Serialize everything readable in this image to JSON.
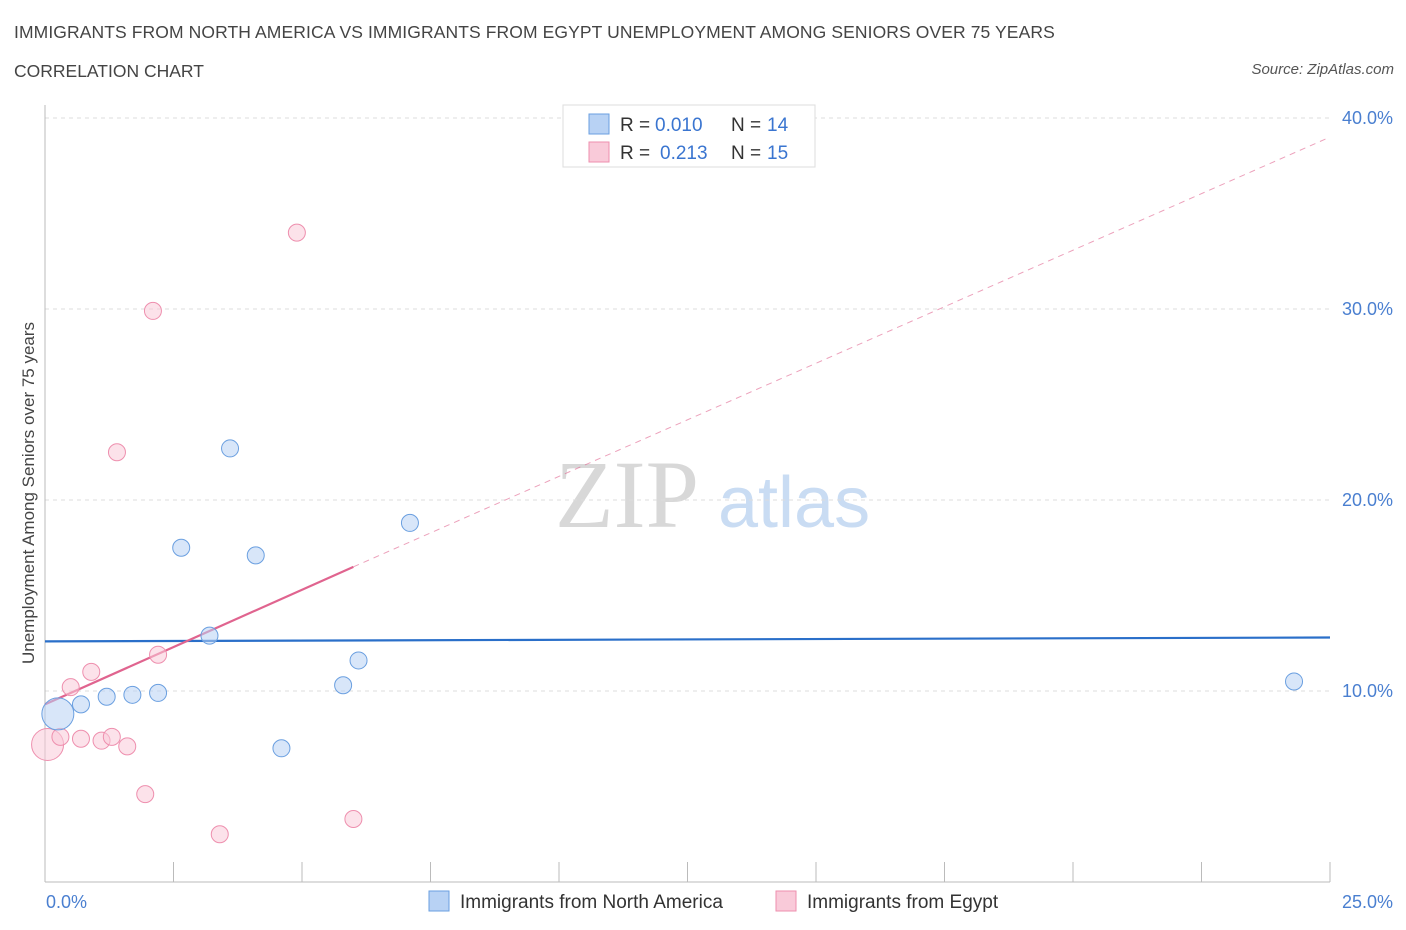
{
  "header": {
    "title": "IMMIGRANTS FROM NORTH AMERICA VS IMMIGRANTS FROM EGYPT UNEMPLOYMENT AMONG SENIORS OVER 75 YEARS",
    "subtitle": "CORRELATION CHART",
    "source": "Source: ZipAtlas.com"
  },
  "watermark": {
    "zip": "ZIP",
    "atlas": "atlas"
  },
  "legend": {
    "r_label": "R =",
    "n_label": "N =",
    "rows": [
      {
        "r": "0.010",
        "n": "14"
      },
      {
        "r": "0.213",
        "n": "15"
      }
    ]
  },
  "chart_data": {
    "type": "scatter",
    "title": "IMMIGRANTS FROM NORTH AMERICA VS IMMIGRANTS FROM EGYPT UNEMPLOYMENT AMONG SENIORS OVER 75 YEARS",
    "ylabel": "Unemployment Among Seniors over 75 years",
    "xlabel": "",
    "xlim": [
      0,
      25
    ],
    "ylim": [
      0,
      40
    ],
    "x_tick_labels": [
      "0.0%",
      "25.0%"
    ],
    "y_ticks": [
      10,
      20,
      30,
      40
    ],
    "y_tick_labels": [
      "10.0%",
      "20.0%",
      "30.0%",
      "40.0%"
    ],
    "grid": true,
    "colors": {
      "north_america": "#6a9fe0",
      "egypt": "#ee8fae",
      "na_line": "#2a6fc9",
      "eg_line": "#e0648f"
    },
    "series": [
      {
        "name": "Immigrants from North America",
        "points": [
          {
            "x": 0.25,
            "y": 8.8,
            "size": "large"
          },
          {
            "x": 0.7,
            "y": 9.3
          },
          {
            "x": 1.2,
            "y": 9.7
          },
          {
            "x": 1.7,
            "y": 9.8
          },
          {
            "x": 2.2,
            "y": 9.9
          },
          {
            "x": 2.65,
            "y": 17.5
          },
          {
            "x": 3.2,
            "y": 12.9
          },
          {
            "x": 3.6,
            "y": 22.7
          },
          {
            "x": 4.1,
            "y": 17.1
          },
          {
            "x": 4.6,
            "y": 7.0
          },
          {
            "x": 5.8,
            "y": 10.3
          },
          {
            "x": 6.1,
            "y": 11.6
          },
          {
            "x": 7.1,
            "y": 18.8
          },
          {
            "x": 24.3,
            "y": 10.5
          }
        ],
        "trend": {
          "x": [
            0,
            25
          ],
          "y": [
            12.6,
            12.8
          ]
        }
      },
      {
        "name": "Immigrants from Egypt",
        "points": [
          {
            "x": 0.05,
            "y": 7.2,
            "size": "large"
          },
          {
            "x": 0.3,
            "y": 7.6
          },
          {
            "x": 0.5,
            "y": 10.2
          },
          {
            "x": 0.7,
            "y": 7.5
          },
          {
            "x": 0.9,
            "y": 11.0
          },
          {
            "x": 1.1,
            "y": 7.4
          },
          {
            "x": 1.3,
            "y": 7.6
          },
          {
            "x": 1.4,
            "y": 22.5
          },
          {
            "x": 1.6,
            "y": 7.1
          },
          {
            "x": 1.95,
            "y": 4.6
          },
          {
            "x": 2.1,
            "y": 29.9
          },
          {
            "x": 2.2,
            "y": 11.9
          },
          {
            "x": 3.4,
            "y": 2.5
          },
          {
            "x": 4.9,
            "y": 34.0
          },
          {
            "x": 6.0,
            "y": 3.3
          }
        ],
        "trend": {
          "x": [
            0,
            6.0
          ],
          "y": [
            9.3,
            16.5
          ]
        },
        "trend_extension": {
          "x": [
            6.0,
            25
          ],
          "y": [
            16.5,
            39.0
          ]
        }
      }
    ]
  },
  "bottom_legend": {
    "items": [
      {
        "label": "Immigrants from North America"
      },
      {
        "label": "Immigrants from Egypt"
      }
    ]
  }
}
